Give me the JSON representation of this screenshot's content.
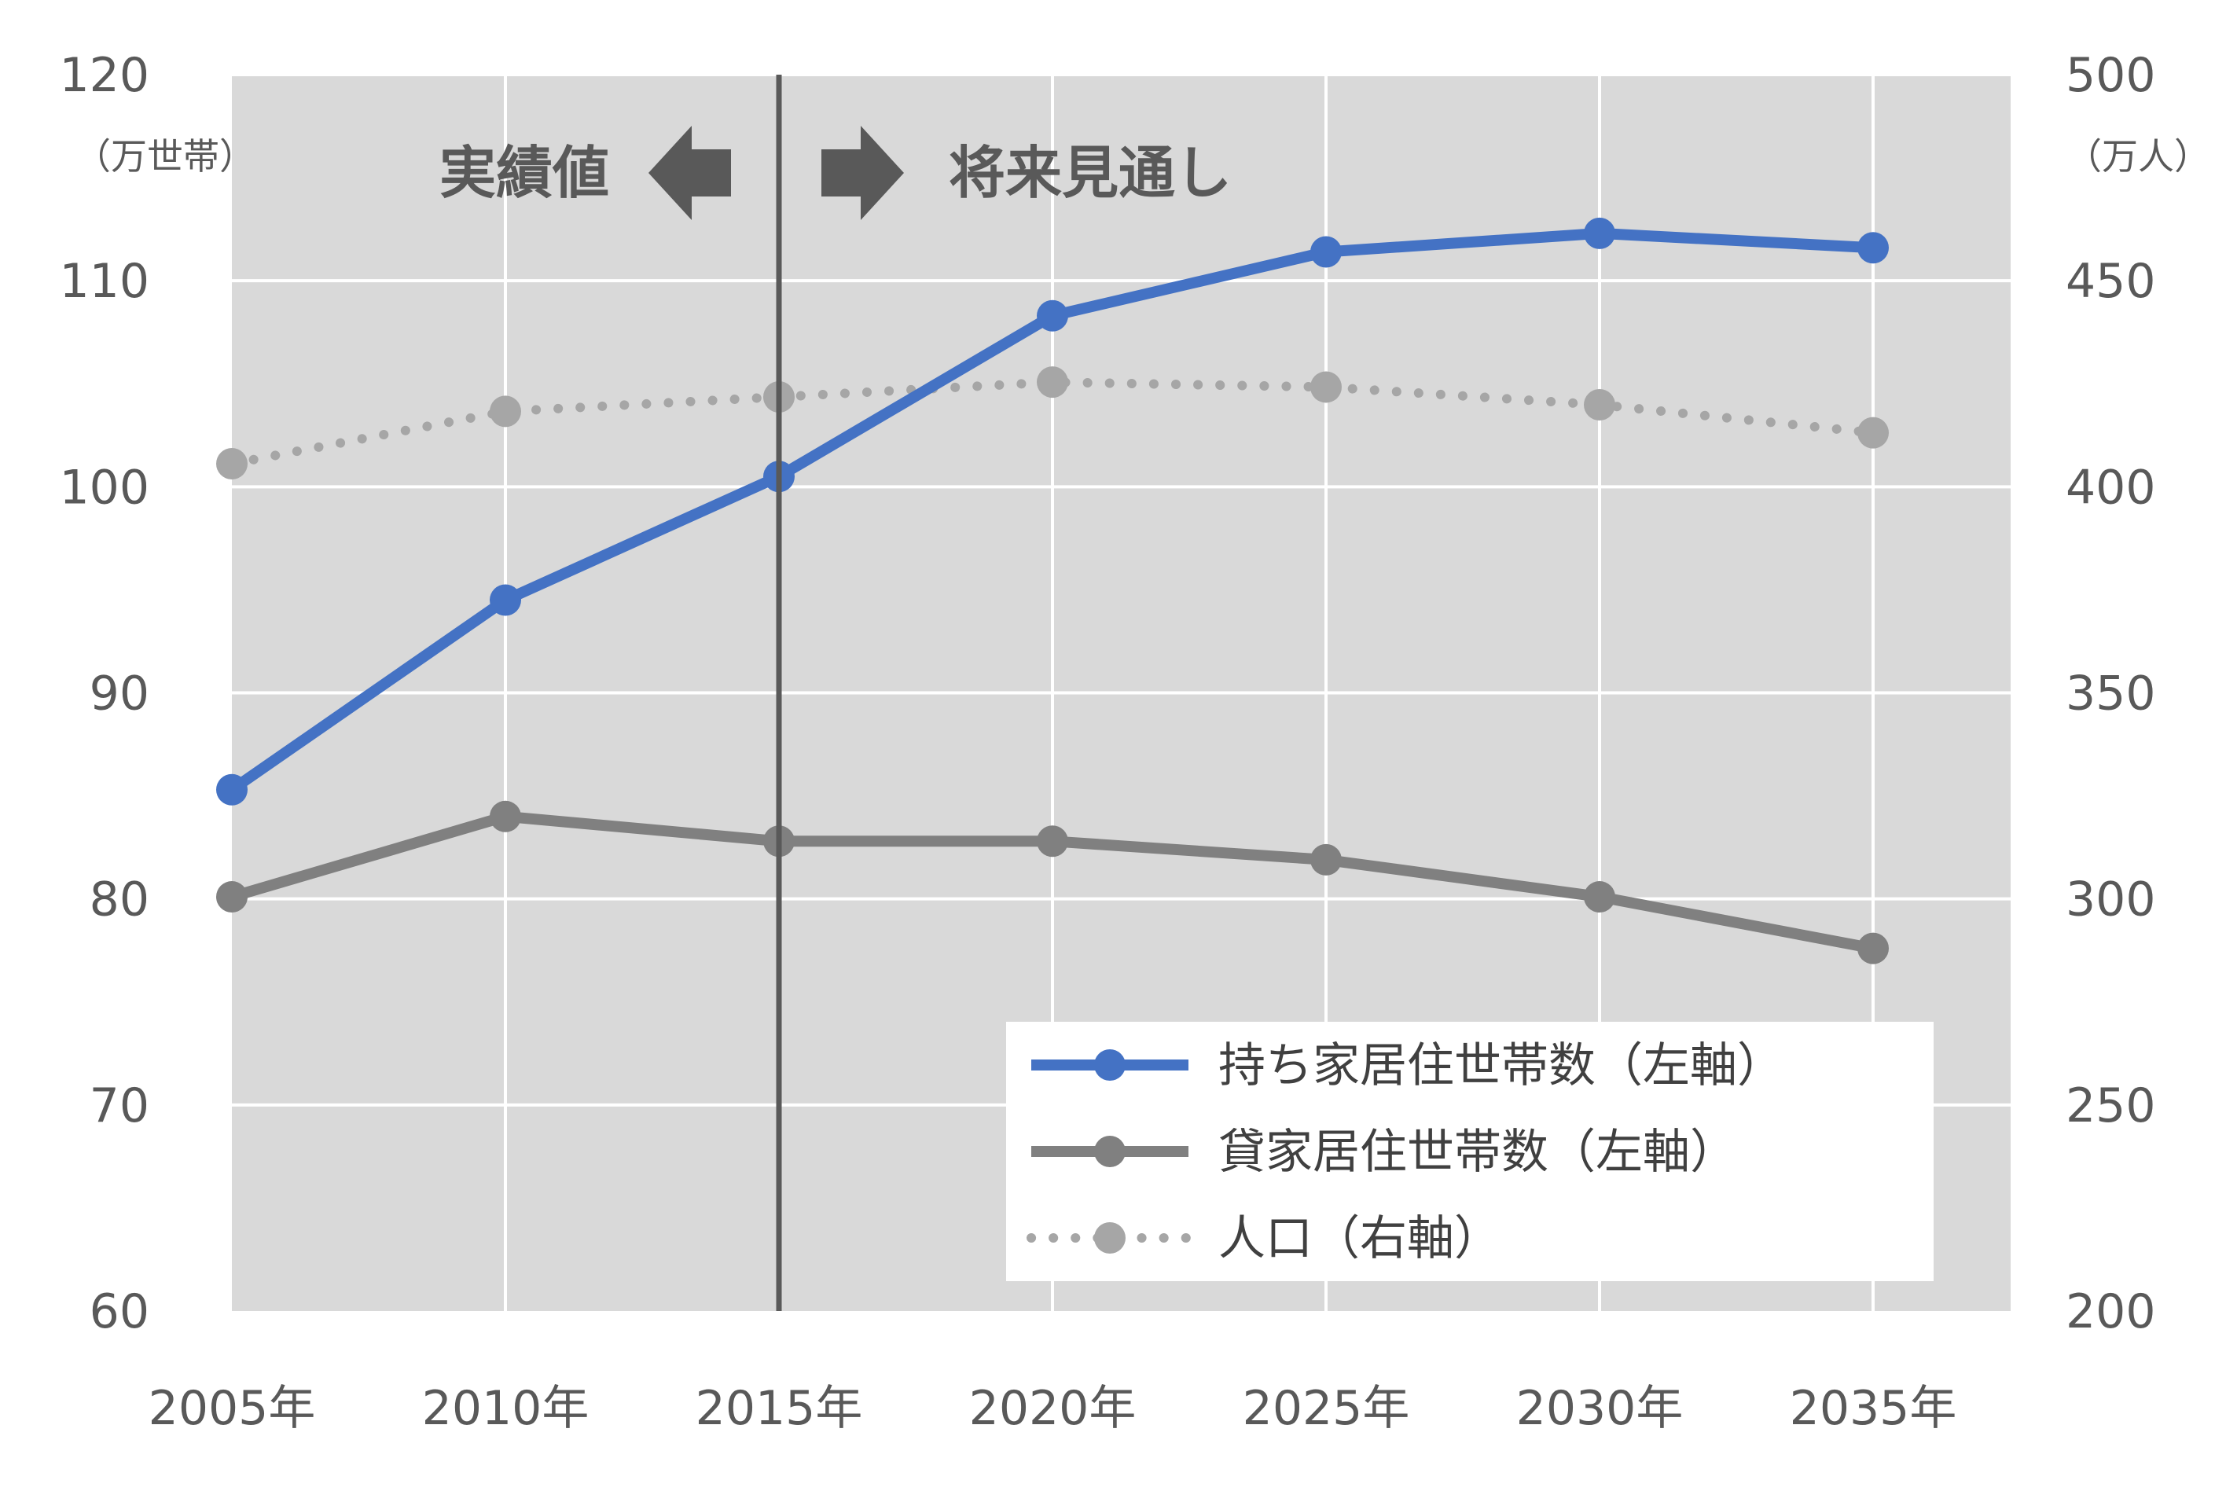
{
  "chart_data": {
    "type": "line",
    "categories": [
      "2005年",
      "2010年",
      "2015年",
      "2020年",
      "2025年",
      "2030年",
      "2035年"
    ],
    "left_axis": {
      "unit_label": "（万世帯）",
      "ylim": [
        60,
        120
      ],
      "ticks": [
        "60",
        "70",
        "80",
        "90",
        "100",
        "110",
        "120"
      ]
    },
    "right_axis": {
      "unit_label": "（万人）",
      "ylim": [
        200,
        500
      ],
      "ticks": [
        "200",
        "250",
        "300",
        "350",
        "400",
        "450",
        "500"
      ]
    },
    "series": [
      {
        "name": "持ち家居住世帯数（左軸）",
        "axis": "left",
        "color": "#4472C4",
        "style": "solid",
        "values": [
          85.3,
          94.5,
          100.5,
          108.3,
          111.4,
          112.3,
          111.6
        ]
      },
      {
        "name": "貸家居住世帯数（左軸）",
        "axis": "left",
        "color": "#808080",
        "style": "solid",
        "values": [
          80.1,
          84.0,
          82.8,
          82.8,
          81.9,
          80.1,
          77.6
        ]
      },
      {
        "name": "人口（右軸）",
        "axis": "right",
        "color": "#A6A6A6",
        "style": "dotted",
        "values": [
          405.6,
          418.3,
          421.8,
          425.4,
          424.2,
          419.9,
          413.1
        ]
      }
    ],
    "divider_after": "2015年",
    "annotations": {
      "left_region": "実績値",
      "right_region": "将来見通し"
    },
    "grid": true,
    "legend_position": "bottom-right",
    "plot_background": "#D9D9D9"
  }
}
